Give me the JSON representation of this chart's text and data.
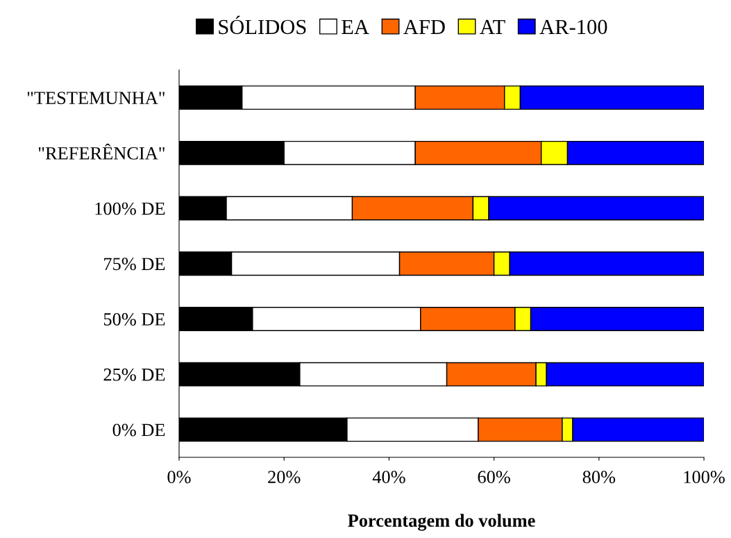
{
  "chart_data": {
    "type": "bar",
    "orientation": "horizontal",
    "stacked": true,
    "categories": [
      "\"TESTEMUNHA\"",
      "\"REFERÊNCIA\"",
      "100% DE",
      "75% DE",
      "50% DE",
      "25% DE",
      "0% DE"
    ],
    "series": [
      {
        "name": "SÓLIDOS",
        "color": "#000000",
        "values": [
          12,
          20,
          9,
          10,
          14,
          23,
          32
        ]
      },
      {
        "name": "EA",
        "color": "#ffffff",
        "values": [
          33,
          25,
          24,
          32,
          32,
          28,
          25
        ]
      },
      {
        "name": "AFD",
        "color": "#ff6600",
        "values": [
          17,
          24,
          23,
          18,
          18,
          17,
          16
        ]
      },
      {
        "name": "AT",
        "color": "#ffff00",
        "values": [
          3,
          5,
          3,
          3,
          3,
          2,
          2
        ]
      },
      {
        "name": "AR-100",
        "color": "#0000ff",
        "values": [
          35,
          26,
          41,
          37,
          33,
          30,
          25
        ]
      }
    ],
    "xlabel": "Porcentagem do volume",
    "xlim": [
      0,
      100
    ],
    "xticks": [
      {
        "value": 0,
        "label": "0%"
      },
      {
        "value": 20,
        "label": "20%"
      },
      {
        "value": 40,
        "label": "40%"
      },
      {
        "value": 60,
        "label": "60%"
      },
      {
        "value": 80,
        "label": "80%"
      },
      {
        "value": 100,
        "label": "100%"
      }
    ],
    "legend": "top",
    "grid": false
  }
}
